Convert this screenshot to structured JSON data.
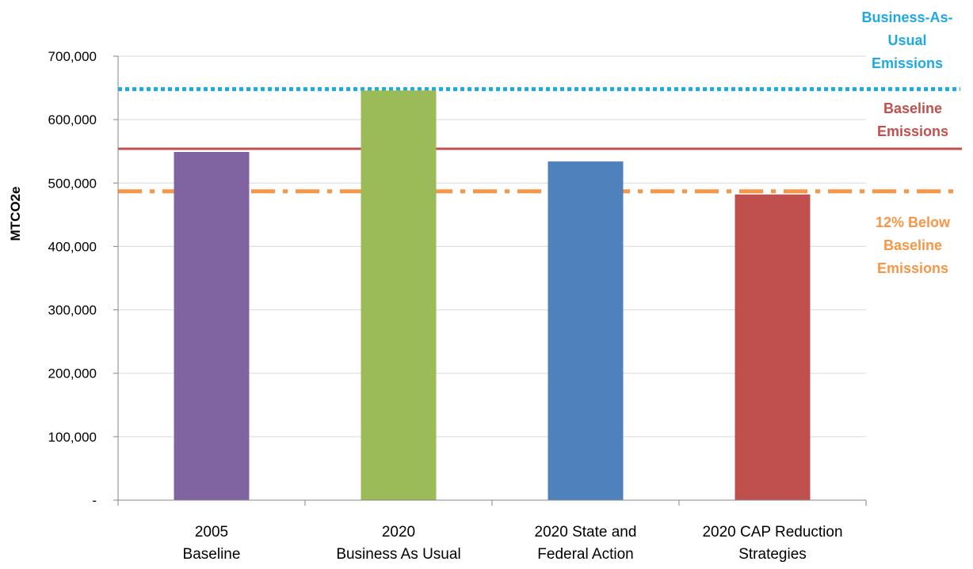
{
  "chart_data": {
    "type": "bar",
    "ylabel": "MTCO2e",
    "ylim": [
      0,
      700000
    ],
    "yticks": [
      0,
      100000,
      200000,
      300000,
      400000,
      500000,
      600000,
      700000
    ],
    "ytick_labels": [
      "-",
      "100,000",
      "200,000",
      "300,000",
      "400,000",
      "500,000",
      "600,000",
      "700,000"
    ],
    "grid": true,
    "categories": [
      [
        "2005",
        "Baseline"
      ],
      [
        "2020",
        "Business As Usual"
      ],
      [
        "2020 State and",
        "Federal Action"
      ],
      [
        "2020 CAP Reduction",
        "Strategies"
      ]
    ],
    "values": [
      549000,
      646000,
      534000,
      482000
    ],
    "bar_colors": [
      "#8064A2",
      "#9BBB59",
      "#4F81BD",
      "#C0504D"
    ],
    "reference_lines": [
      {
        "label": [
          "Business-As-",
          "Usual",
          "Emissions"
        ],
        "value": 648000,
        "color": "#1FA9E1",
        "style": "dotted"
      },
      {
        "label": [
          "Baseline",
          "Emissions"
        ],
        "value": 554000,
        "color": "#C0504D",
        "style": "solid"
      },
      {
        "label": [
          "12% Below",
          "Baseline",
          "Emissions"
        ],
        "value": 487000,
        "color": "#F79646",
        "style": "dash-dot"
      }
    ]
  }
}
